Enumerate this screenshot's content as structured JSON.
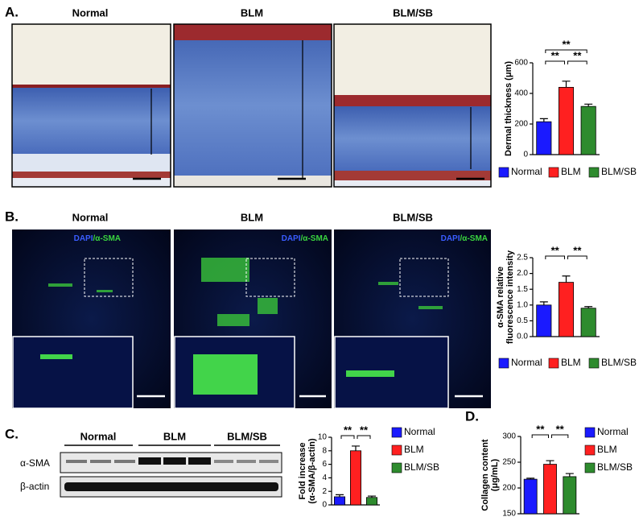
{
  "panel_a": {
    "label": "A.",
    "image_titles": [
      "Normal",
      "BLM",
      "BLM/SB"
    ]
  },
  "panel_b": {
    "label": "B.",
    "image_titles": [
      "Normal",
      "BLM",
      "BLM/SB"
    ],
    "stain_dapi": "DAPI",
    "stain_sma": "/α-SMA"
  },
  "panel_c": {
    "label": "C.",
    "lane_groups": [
      "Normal",
      "BLM",
      "BLM/SB"
    ],
    "rows": [
      "α-SMA",
      "β-actin"
    ]
  },
  "panel_d": {
    "label": "D."
  },
  "chart_data": [
    {
      "type": "bar",
      "ylabel": [
        "Dermal thickness (μm)"
      ],
      "categories": [
        "Normal",
        "BLM",
        "BLM/SB"
      ],
      "values": [
        215,
        440,
        315
      ],
      "errors": [
        20,
        40,
        15
      ],
      "colors": [
        "#1a1aff",
        "#ff2020",
        "#2e8b2e"
      ],
      "ylim": [
        0,
        600
      ],
      "yticks": [
        0,
        200,
        400,
        600
      ],
      "legend": "bottom",
      "annotations": [
        {
          "text": "**",
          "from": 0,
          "to": 1
        },
        {
          "text": "**",
          "from": 1,
          "to": 2
        },
        {
          "text": "**",
          "from": 0,
          "to": 2
        }
      ]
    },
    {
      "type": "bar",
      "ylabel": [
        "α-SMA relative",
        "fluorescence intensity"
      ],
      "categories": [
        "Normal",
        "BLM",
        "BLM/SB"
      ],
      "values": [
        1.0,
        1.72,
        0.9
      ],
      "errors": [
        0.1,
        0.2,
        0.05
      ],
      "colors": [
        "#1a1aff",
        "#ff2020",
        "#2e8b2e"
      ],
      "ylim": [
        0,
        2.5
      ],
      "yticks": [
        {
          "value": 0,
          "label": "0.0"
        },
        0.5,
        {
          "value": 1,
          "label": "1.0"
        },
        1.5,
        {
          "value": 2,
          "label": "2.0"
        },
        2.5
      ],
      "legend": "bottom",
      "annotations": [
        {
          "text": "**",
          "from": 0,
          "to": 1
        },
        {
          "text": "**",
          "from": 1,
          "to": 2
        }
      ]
    },
    {
      "type": "bar",
      "ylabel": [
        "Fold increase",
        "(α-SMA/β-actin)"
      ],
      "categories": [
        "Normal",
        "BLM",
        "BLM/SB"
      ],
      "values": [
        1.2,
        8.0,
        1.1
      ],
      "errors": [
        0.3,
        0.7,
        0.2
      ],
      "colors": [
        "#1a1aff",
        "#ff2020",
        "#2e8b2e"
      ],
      "ylim": [
        0,
        10
      ],
      "yticks": [
        0,
        2,
        4,
        6,
        8,
        10
      ],
      "legend": "right",
      "annotations": [
        {
          "text": "**",
          "from": 0,
          "to": 1
        },
        {
          "text": "**",
          "from": 1,
          "to": 2
        }
      ]
    },
    {
      "type": "bar",
      "ylabel": [
        "Collagen content",
        "(μg/mL)"
      ],
      "categories": [
        "Normal",
        "BLM",
        "BLM/SB"
      ],
      "values": [
        217,
        246,
        222
      ],
      "errors": [
        2,
        7,
        6
      ],
      "colors": [
        "#1a1aff",
        "#ff2020",
        "#2e8b2e"
      ],
      "ylim": [
        150,
        300
      ],
      "yticks": [
        150,
        200,
        250,
        300
      ],
      "legend": "right",
      "annotations": [
        {
          "text": "**",
          "from": 0,
          "to": 1
        },
        {
          "text": "**",
          "from": 1,
          "to": 2
        }
      ]
    }
  ]
}
